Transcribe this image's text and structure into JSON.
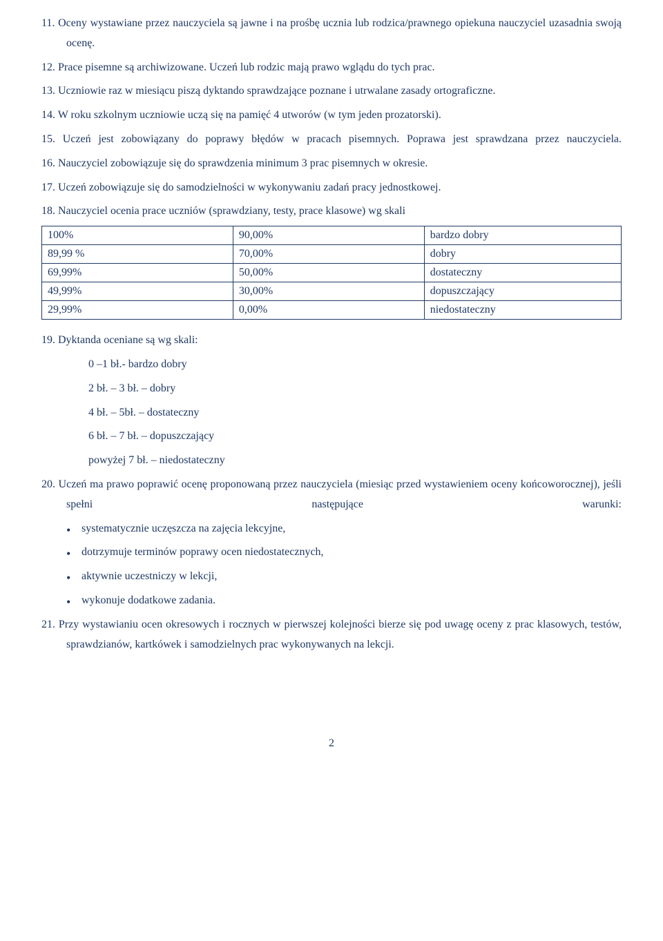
{
  "colors": {
    "text": "#1f3864",
    "border": "#1f3864",
    "background": "#ffffff"
  },
  "typography": {
    "font_family": "Times New Roman",
    "font_size_pt": 12,
    "line_height": 1.8
  },
  "list1": [
    {
      "num": "11.",
      "text": "Oceny wystawiane przez nauczyciela są jawne i na prośbę ucznia lub rodzica/prawnego opiekuna nauczyciel uzasadnia swoją ocenę."
    },
    {
      "num": "12.",
      "text": "Prace pisemne są archiwizowane. Uczeń lub rodzic mają  prawo wglądu do tych prac."
    },
    {
      "num": "13.",
      "text": "Uczniowie raz w miesiącu piszą dyktando sprawdzające poznane i utrwalane zasady ortograficzne."
    },
    {
      "num": "14.",
      "text": "W roku szkolnym uczniowie uczą się na pamięć 4 utworów (w tym jeden prozatorski)."
    },
    {
      "num": "15.",
      "text": "Uczeń jest zobowiązany do poprawy błędów w pracach pisemnych. Poprawa jest sprawdzana przez nauczyciela.",
      "justify": true
    },
    {
      "num": "16.",
      "text": "Nauczyciel zobowiązuje się do sprawdzenia minimum 3 prac pisemnych w okresie."
    },
    {
      "num": "17.",
      "text": "Uczeń zobowiązuje się do samodzielności w wykonywaniu zadań pracy jednostkowej."
    },
    {
      "num": "18.",
      "text": "Nauczyciel ocenia prace uczniów (sprawdziany, testy, prace klasowe) wg skali"
    }
  ],
  "grade_table": {
    "type": "table",
    "columns": [
      "upper",
      "lower",
      "grade"
    ],
    "rows": [
      [
        "100%",
        "90,00%",
        "bardzo dobry"
      ],
      [
        "89,99 %",
        "70,00%",
        "dobry"
      ],
      [
        "69,99%",
        "50,00%",
        "dostateczny"
      ],
      [
        "49,99%",
        "30,00%",
        "dopuszczający"
      ],
      [
        "29,99%",
        "0,00%",
        "niedostateczny"
      ]
    ],
    "border_color": "#1f3864",
    "cell_padding": "4px 8px"
  },
  "item19": {
    "num": "19.",
    "text": "Dyktanda oceniane są wg skali:",
    "sub": [
      " 0 –1 bł.- bardzo dobry",
      "2 bł. – 3 bł. – dobry",
      "4 bł. – 5bł. – dostateczny",
      "6 bł. – 7 bł. – dopuszczający",
      "powyżej 7 bł. – niedostateczny"
    ]
  },
  "item20": {
    "num": "20.",
    "text": "Uczeń ma prawo poprawić ocenę proponowaną przez nauczyciela (miesiąc przed wystawieniem oceny końcoworocznej), jeśli spełni następujące warunki:",
    "bullets": [
      "systematycznie uczęszcza na zajęcia lekcyjne,",
      "dotrzymuje terminów poprawy ocen niedostatecznych,",
      "aktywnie uczestniczy w lekcji,",
      "wykonuje dodatkowe zadania."
    ]
  },
  "item21": {
    "num": "21.",
    "text": "Przy wystawianiu ocen okresowych i rocznych w pierwszej kolejności bierze się pod uwagę oceny z prac klasowych, testów, sprawdzianów, kartkówek i samodzielnych prac wykonywanych na lekcji."
  },
  "page_number": "2"
}
